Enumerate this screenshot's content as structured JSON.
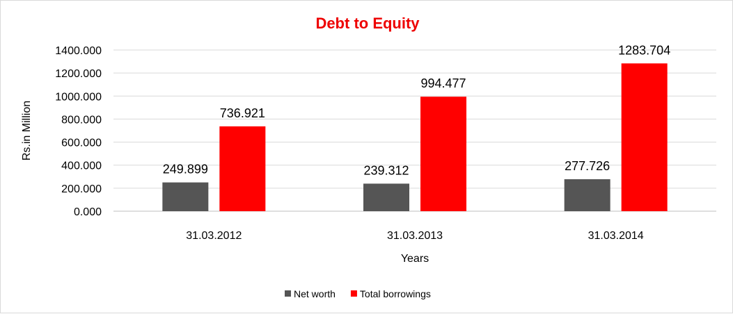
{
  "chart_data": {
    "type": "bar",
    "title": "Debt to Equity",
    "title_color": "#ee0000",
    "xlabel": "Years",
    "ylabel": "Rs.in Million",
    "categories": [
      "31.03.2012",
      "31.03.2013",
      "31.03.2014"
    ],
    "series": [
      {
        "name": "Net worth",
        "color": "#555555",
        "values": [
          249.899,
          239.312,
          277.726
        ],
        "labels": [
          "249.899",
          "239.312",
          "277.726"
        ]
      },
      {
        "name": "Total borrowings",
        "color": "#ff0000",
        "values": [
          736.921,
          994.477,
          1283.704
        ],
        "labels": [
          "736.921",
          "994.477",
          "1283.704"
        ]
      }
    ],
    "ylim": [
      0,
      1400
    ],
    "yticks": [
      0,
      200,
      400,
      600,
      800,
      1000,
      1200,
      1400
    ],
    "ytick_labels": [
      "0.000",
      "200.000",
      "400.000",
      "600.000",
      "800.000",
      "1000.000",
      "1200.000",
      "1400.000"
    ],
    "grid": true,
    "legend_position": "bottom"
  }
}
